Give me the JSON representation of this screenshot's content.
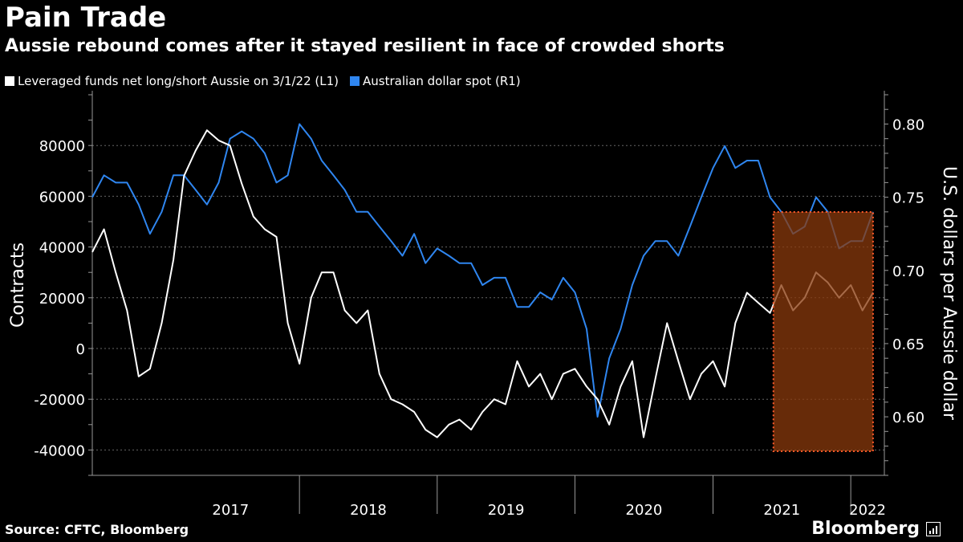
{
  "header": {
    "title": "Pain Trade",
    "subtitle": "Aussie rebound comes after it stayed resilient in face of crowded shorts"
  },
  "footer": {
    "source": "Source: CFTC, Bloomberg",
    "brand": "Bloomberg"
  },
  "colors": {
    "background": "#000000",
    "funds_line": "#ffffff",
    "aud_line": "#2f86f0",
    "highlight_fill": "#8a3a0c",
    "highlight_border": "#ff5a2a",
    "grid": "#666666"
  },
  "chart_data": {
    "type": "line",
    "title": "Pain Trade",
    "subtitle": "Aussie rebound comes after it stayed resilient in face of crowded shorts",
    "ylabel_left": "Contracts",
    "ylabel_right": "U.S. dollars per Aussie dollar",
    "x_ticks": [
      "2017",
      "2018",
      "2019",
      "2020",
      "2021",
      "2022"
    ],
    "xlim": [
      "2016-07-01",
      "2022-03-31"
    ],
    "ylim_left": [
      -50000,
      100000
    ],
    "yticks_left": [
      80000,
      60000,
      40000,
      20000,
      0,
      -20000,
      -40000
    ],
    "ylim_right": [
      0.56,
      0.82
    ],
    "yticks_right": [
      0.8,
      0.75,
      0.7,
      0.65,
      0.6
    ],
    "legend_position": "top-left",
    "grid": true,
    "highlight_region": {
      "x_start": "2021-06-10",
      "x_end": "2022-03-01"
    },
    "series": [
      {
        "name": "Leveraged funds net long/short Aussie  on 3/1/22 (L1)",
        "axis": "left",
        "points": [
          [
            "2016-07-01",
            38000
          ],
          [
            "2016-08-01",
            47000
          ],
          [
            "2016-09-01",
            30000
          ],
          [
            "2016-10-01",
            15000
          ],
          [
            "2016-11-01",
            -11000
          ],
          [
            "2016-12-01",
            -8000
          ],
          [
            "2017-01-01",
            10000
          ],
          [
            "2017-02-01",
            35000
          ],
          [
            "2017-03-01",
            68000
          ],
          [
            "2017-04-01",
            78000
          ],
          [
            "2017-05-01",
            86000
          ],
          [
            "2017-06-01",
            82000
          ],
          [
            "2017-07-01",
            80000
          ],
          [
            "2017-08-01",
            65000
          ],
          [
            "2017-09-01",
            52000
          ],
          [
            "2017-10-01",
            47000
          ],
          [
            "2017-11-01",
            44000
          ],
          [
            "2017-12-01",
            10000
          ],
          [
            "2018-01-01",
            -6000
          ],
          [
            "2018-02-01",
            20000
          ],
          [
            "2018-03-01",
            30000
          ],
          [
            "2018-04-01",
            30000
          ],
          [
            "2018-05-01",
            15000
          ],
          [
            "2018-06-01",
            10000
          ],
          [
            "2018-07-01",
            15000
          ],
          [
            "2018-08-01",
            -10000
          ],
          [
            "2018-09-01",
            -20000
          ],
          [
            "2018-10-01",
            -22000
          ],
          [
            "2018-11-01",
            -25000
          ],
          [
            "2018-12-01",
            -32000
          ],
          [
            "2019-01-01",
            -35000
          ],
          [
            "2019-02-01",
            -30000
          ],
          [
            "2019-03-01",
            -28000
          ],
          [
            "2019-04-01",
            -32000
          ],
          [
            "2019-05-01",
            -25000
          ],
          [
            "2019-06-01",
            -20000
          ],
          [
            "2019-07-01",
            -22000
          ],
          [
            "2019-08-01",
            -5000
          ],
          [
            "2019-09-01",
            -15000
          ],
          [
            "2019-10-01",
            -10000
          ],
          [
            "2019-11-01",
            -20000
          ],
          [
            "2019-12-01",
            -10000
          ],
          [
            "2020-01-01",
            -8000
          ],
          [
            "2020-02-01",
            -15000
          ],
          [
            "2020-03-01",
            -20000
          ],
          [
            "2020-04-01",
            -30000
          ],
          [
            "2020-05-01",
            -15000
          ],
          [
            "2020-06-01",
            -5000
          ],
          [
            "2020-07-01",
            -35000
          ],
          [
            "2020-08-01",
            -12000
          ],
          [
            "2020-09-01",
            10000
          ],
          [
            "2020-10-01",
            -5000
          ],
          [
            "2020-11-01",
            -20000
          ],
          [
            "2020-12-01",
            -10000
          ],
          [
            "2021-01-01",
            -5000
          ],
          [
            "2021-02-01",
            -15000
          ],
          [
            "2021-03-01",
            10000
          ],
          [
            "2021-04-01",
            22000
          ],
          [
            "2021-05-01",
            18000
          ],
          [
            "2021-06-01",
            14000
          ],
          [
            "2021-07-01",
            25000
          ],
          [
            "2021-08-01",
            15000
          ],
          [
            "2021-09-01",
            20000
          ],
          [
            "2021-10-01",
            30000
          ],
          [
            "2021-11-01",
            26000
          ],
          [
            "2021-12-01",
            20000
          ],
          [
            "2022-01-01",
            25000
          ],
          [
            "2022-02-01",
            15000
          ],
          [
            "2022-03-01",
            22000
          ]
        ]
      },
      {
        "name": "Australian dollar spot (R1)",
        "axis": "right",
        "points": [
          [
            "2016-07-01",
            0.75
          ],
          [
            "2016-08-01",
            0.765
          ],
          [
            "2016-09-01",
            0.76
          ],
          [
            "2016-10-01",
            0.76
          ],
          [
            "2016-11-01",
            0.745
          ],
          [
            "2016-12-01",
            0.725
          ],
          [
            "2017-01-01",
            0.74
          ],
          [
            "2017-02-01",
            0.765
          ],
          [
            "2017-03-01",
            0.765
          ],
          [
            "2017-04-01",
            0.755
          ],
          [
            "2017-05-01",
            0.745
          ],
          [
            "2017-06-01",
            0.76
          ],
          [
            "2017-07-01",
            0.79
          ],
          [
            "2017-08-01",
            0.795
          ],
          [
            "2017-09-01",
            0.79
          ],
          [
            "2017-10-01",
            0.78
          ],
          [
            "2017-11-01",
            0.76
          ],
          [
            "2017-12-01",
            0.765
          ],
          [
            "2018-01-01",
            0.8
          ],
          [
            "2018-02-01",
            0.79
          ],
          [
            "2018-03-01",
            0.775
          ],
          [
            "2018-04-01",
            0.765
          ],
          [
            "2018-05-01",
            0.755
          ],
          [
            "2018-06-01",
            0.74
          ],
          [
            "2018-07-01",
            0.74
          ],
          [
            "2018-08-01",
            0.73
          ],
          [
            "2018-09-01",
            0.72
          ],
          [
            "2018-10-01",
            0.71
          ],
          [
            "2018-11-01",
            0.725
          ],
          [
            "2018-12-01",
            0.705
          ],
          [
            "2019-01-01",
            0.715
          ],
          [
            "2019-02-01",
            0.71
          ],
          [
            "2019-03-01",
            0.705
          ],
          [
            "2019-04-01",
            0.705
          ],
          [
            "2019-05-01",
            0.69
          ],
          [
            "2019-06-01",
            0.695
          ],
          [
            "2019-07-01",
            0.695
          ],
          [
            "2019-08-01",
            0.675
          ],
          [
            "2019-09-01",
            0.675
          ],
          [
            "2019-10-01",
            0.685
          ],
          [
            "2019-11-01",
            0.68
          ],
          [
            "2019-12-01",
            0.695
          ],
          [
            "2020-01-01",
            0.685
          ],
          [
            "2020-02-01",
            0.66
          ],
          [
            "2020-03-01",
            0.6
          ],
          [
            "2020-04-01",
            0.64
          ],
          [
            "2020-05-01",
            0.66
          ],
          [
            "2020-06-01",
            0.69
          ],
          [
            "2020-07-01",
            0.71
          ],
          [
            "2020-08-01",
            0.72
          ],
          [
            "2020-09-01",
            0.72
          ],
          [
            "2020-10-01",
            0.71
          ],
          [
            "2020-11-01",
            0.73
          ],
          [
            "2020-12-01",
            0.75
          ],
          [
            "2021-01-01",
            0.77
          ],
          [
            "2021-02-01",
            0.785
          ],
          [
            "2021-03-01",
            0.77
          ],
          [
            "2021-04-01",
            0.775
          ],
          [
            "2021-05-01",
            0.775
          ],
          [
            "2021-06-01",
            0.75
          ],
          [
            "2021-07-01",
            0.74
          ],
          [
            "2021-08-01",
            0.725
          ],
          [
            "2021-09-01",
            0.73
          ],
          [
            "2021-10-01",
            0.75
          ],
          [
            "2021-11-01",
            0.74
          ],
          [
            "2021-12-01",
            0.715
          ],
          [
            "2022-01-01",
            0.72
          ],
          [
            "2022-02-01",
            0.72
          ],
          [
            "2022-03-01",
            0.74
          ]
        ]
      }
    ]
  }
}
